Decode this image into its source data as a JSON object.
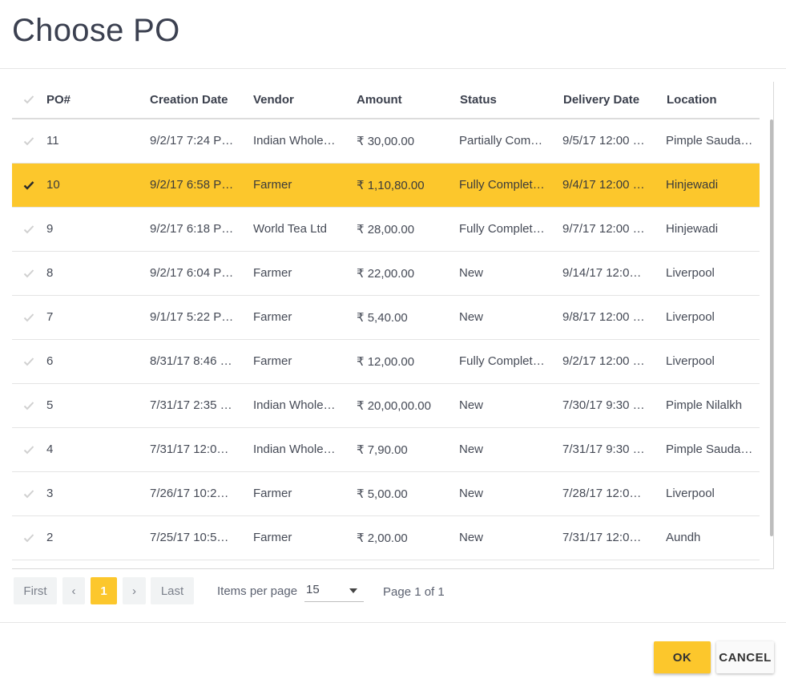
{
  "dialog": {
    "title": "Choose PO"
  },
  "columns": [
    "PO#",
    "Creation Date",
    "Vendor",
    "Amount",
    "Status",
    "Delivery Date",
    "Location"
  ],
  "rows": [
    {
      "po": "11",
      "created": "9/2/17 7:24 P…",
      "vendor": "Indian Whole…",
      "amount": "₹ 30,00.00",
      "status": "Partially Com…",
      "delivery": "9/5/17 12:00 …",
      "location": "Pimple Sauda…",
      "selected": false
    },
    {
      "po": "10",
      "created": "9/2/17 6:58 P…",
      "vendor": "Farmer",
      "amount": "₹ 1,10,80.00",
      "status": "Fully Complet…",
      "delivery": "9/4/17 12:00 …",
      "location": "Hinjewadi",
      "selected": true
    },
    {
      "po": "9",
      "created": "9/2/17 6:18 P…",
      "vendor": "World Tea Ltd",
      "amount": "₹ 28,00.00",
      "status": "Fully Complet…",
      "delivery": "9/7/17 12:00 …",
      "location": "Hinjewadi",
      "selected": false
    },
    {
      "po": "8",
      "created": "9/2/17 6:04 P…",
      "vendor": "Farmer",
      "amount": "₹ 22,00.00",
      "status": "New",
      "delivery": "9/14/17 12:0…",
      "location": "Liverpool",
      "selected": false
    },
    {
      "po": "7",
      "created": "9/1/17 5:22 P…",
      "vendor": "Farmer",
      "amount": "₹ 5,40.00",
      "status": "New",
      "delivery": "9/8/17 12:00 …",
      "location": "Liverpool",
      "selected": false
    },
    {
      "po": "6",
      "created": "8/31/17 8:46 …",
      "vendor": "Farmer",
      "amount": "₹ 12,00.00",
      "status": "Fully Complet…",
      "delivery": "9/2/17 12:00 …",
      "location": "Liverpool",
      "selected": false
    },
    {
      "po": "5",
      "created": "7/31/17 2:35 …",
      "vendor": "Indian Whole…",
      "amount": "₹ 20,00,00.00",
      "status": "New",
      "delivery": "7/30/17 9:30 …",
      "location": "Pimple Nilalkh",
      "selected": false
    },
    {
      "po": "4",
      "created": "7/31/17 12:0…",
      "vendor": "Indian Whole…",
      "amount": "₹ 7,90.00",
      "status": "New",
      "delivery": "7/31/17 9:30 …",
      "location": "Pimple Sauda…",
      "selected": false
    },
    {
      "po": "3",
      "created": "7/26/17 10:2…",
      "vendor": "Farmer",
      "amount": "₹ 5,00.00",
      "status": "New",
      "delivery": "7/28/17 12:0…",
      "location": "Liverpool",
      "selected": false
    },
    {
      "po": "2",
      "created": "7/25/17 10:5…",
      "vendor": "Farmer",
      "amount": "₹ 2,00.00",
      "status": "New",
      "delivery": "7/31/17 12:0…",
      "location": "Aundh",
      "selected": false
    }
  ],
  "pager": {
    "first": "First",
    "prev": "‹",
    "current": "1",
    "next": "›",
    "last": "Last",
    "items_per_page_label": "Items per page",
    "items_per_page_value": "15",
    "page_info": "Page 1 of 1"
  },
  "actions": {
    "ok": "OK",
    "cancel": "CANCEL"
  },
  "colors": {
    "accent": "#fcc72c",
    "text": "#3f4553"
  }
}
